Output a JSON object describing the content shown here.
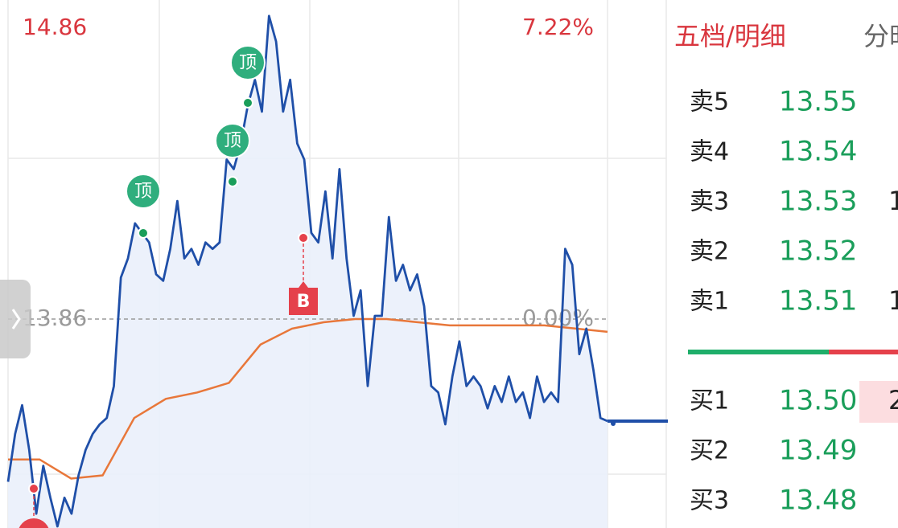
{
  "chart_data": {
    "type": "line",
    "ylim": [
      12.86,
      14.86
    ],
    "yticks": [
      14.86,
      13.86
    ],
    "y2lim": [
      -7.22,
      7.22
    ],
    "y2ticks": [
      {
        "value": 7.22,
        "label": "7.22%"
      },
      {
        "value": 0,
        "label": "0.00%"
      }
    ],
    "series": [
      {
        "color": "#1f4fa8",
        "values": [
          13.35,
          13.5,
          13.59,
          13.45,
          13.25,
          13.4,
          13.3,
          13.21,
          13.3,
          13.25,
          13.37,
          13.45,
          13.5,
          13.53,
          13.55,
          13.65,
          13.99,
          14.05,
          14.16,
          14.13,
          14.1,
          14.0,
          13.98,
          14.08,
          14.23,
          14.05,
          14.08,
          14.03,
          14.1,
          14.08,
          14.1,
          14.36,
          14.33,
          14.41,
          14.53,
          14.61,
          14.51,
          14.81,
          14.73,
          14.51,
          14.61,
          14.41,
          14.36,
          14.13,
          14.1,
          14.26,
          14.05,
          14.33,
          14.05,
          13.87,
          13.95,
          13.65,
          13.87,
          13.87,
          14.18,
          13.98,
          14.03,
          13.95,
          14.0,
          13.9,
          13.65,
          13.63,
          13.53,
          13.68,
          13.79,
          13.65,
          13.68,
          13.65,
          13.58,
          13.65,
          13.6,
          13.68,
          13.6,
          13.63,
          13.55,
          13.68,
          13.6,
          13.63,
          13.6,
          14.08,
          14.03,
          13.75,
          13.83,
          13.7,
          13.55,
          13.54
        ]
      },
      {
        "color": "#e8773a",
        "values": [
          13.42,
          13.42,
          13.36,
          13.37,
          13.55,
          13.61,
          13.63,
          13.66,
          13.78,
          13.83,
          13.85,
          13.86,
          13.86,
          13.85,
          13.84,
          13.84,
          13.84,
          13.84,
          13.83,
          13.82
        ]
      }
    ],
    "annotations": [
      "顶",
      "顶",
      "顶",
      "B"
    ]
  },
  "order_book": {
    "title": "五档/明细",
    "tab": "分时",
    "asks": [
      {
        "label": "卖5",
        "price": "13.55"
      },
      {
        "label": "卖4",
        "price": "13.54"
      },
      {
        "label": "卖3",
        "price": "13.53",
        "volume": "1"
      },
      {
        "label": "卖2",
        "price": "13.52"
      },
      {
        "label": "卖1",
        "price": "13.51",
        "volume": "1"
      }
    ],
    "bids": [
      {
        "label": "买1",
        "price": "13.50",
        "volume": "2"
      },
      {
        "label": "买2",
        "price": "13.49"
      },
      {
        "label": "买3",
        "price": "13.48"
      }
    ]
  }
}
